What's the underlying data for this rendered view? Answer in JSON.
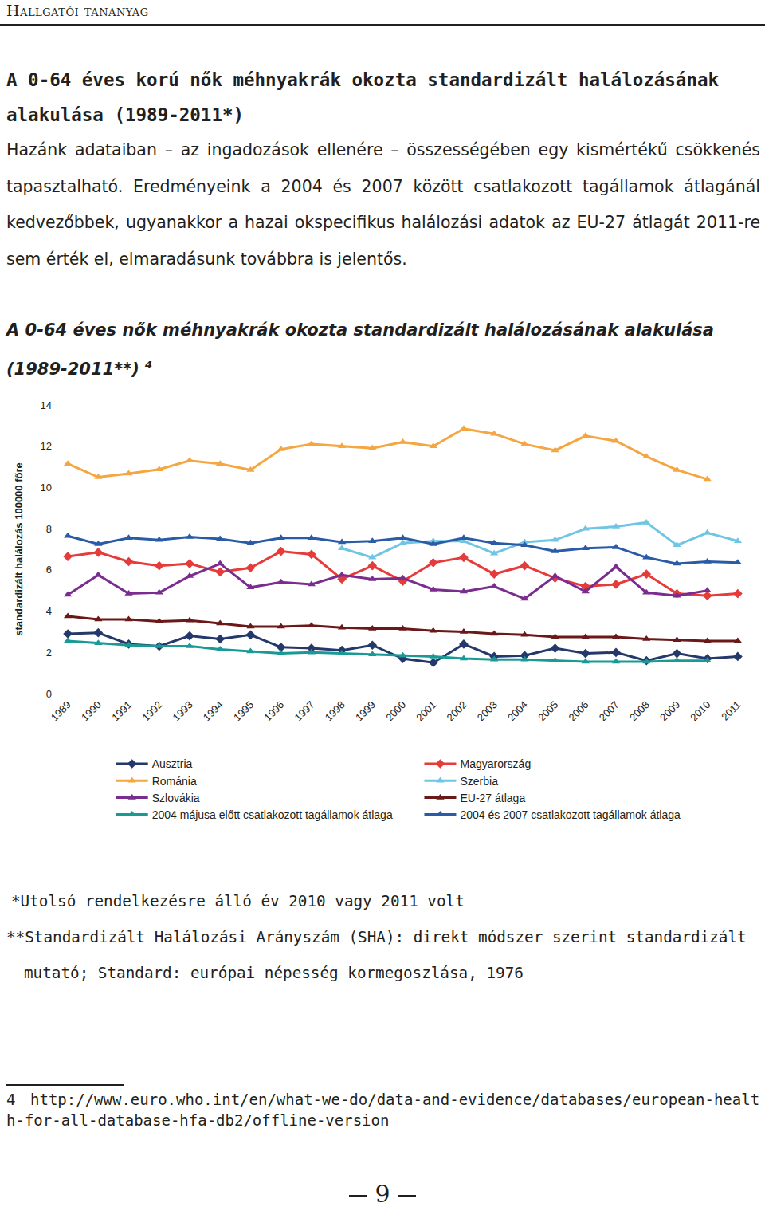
{
  "header": "Hallgatói tananyag",
  "heading": "A 0-64 éves korú nők méhnyakrák okozta standardizált halálozásának alakulása (1989-2011*)",
  "paragraph": "Hazánk adataiban – az ingadozások ellenére – összességében egy kismértékű csökkenés tapasztalható. Eredményeink a 2004 és 2007 között csatlakozott tagállamok átlagánál kedvezőbbek, ugyanakkor a hazai okspecifikus halálozási adatok az EU-27 átlagát 2011-re sem érték el, elmaradásunk továbbra is jelentős.",
  "chart_heading": {
    "text": "A 0-64 éves nők méhnyakrák okozta standardizált halálozásának alakulása (1989-2011**)",
    "ref": "4"
  },
  "chart_data": {
    "type": "line",
    "y_label": "standardizált halálozás 100000 főre",
    "x": [
      1989,
      1990,
      1991,
      1992,
      1993,
      1994,
      1995,
      1996,
      1997,
      1998,
      1999,
      2000,
      2001,
      2002,
      2003,
      2004,
      2005,
      2006,
      2007,
      2008,
      2009,
      2010,
      2011
    ],
    "xlim": [
      1988.5,
      2011.5
    ],
    "xticks": [
      1989,
      1990,
      1991,
      1992,
      1993,
      1994,
      1995,
      1996,
      1997,
      1998,
      1999,
      2000,
      2001,
      2002,
      2003,
      2004,
      2005,
      2006,
      2007,
      2008,
      2009,
      2010,
      2011
    ],
    "ylim": [
      0,
      14
    ],
    "yticks": [
      0,
      2,
      4,
      6,
      8,
      10,
      12,
      14
    ],
    "grid": false,
    "legend": "bottom",
    "series": [
      {
        "name": "Ausztria",
        "color": "#24386b",
        "marker": "diamond",
        "values": [
          2.9,
          2.95,
          2.4,
          2.3,
          2.8,
          2.65,
          2.85,
          2.25,
          2.2,
          2.1,
          2.35,
          1.7,
          1.5,
          2.4,
          1.8,
          1.85,
          2.2,
          1.95,
          2.0,
          1.6,
          1.95,
          1.7,
          1.8
        ]
      },
      {
        "name": "Magyarország",
        "color": "#e63b3b",
        "marker": "diamond",
        "values": [
          6.65,
          6.85,
          6.4,
          6.2,
          6.3,
          5.9,
          6.1,
          6.9,
          6.75,
          5.55,
          6.2,
          5.45,
          6.35,
          6.6,
          5.8,
          6.2,
          5.6,
          5.2,
          5.3,
          5.8,
          4.85,
          4.75,
          4.85
        ]
      },
      {
        "name": "Románia",
        "color": "#f5a640",
        "marker": "triangle",
        "values": [
          11.15,
          10.5,
          10.67,
          10.88,
          11.3,
          11.15,
          10.85,
          11.85,
          12.1,
          12.0,
          11.9,
          12.2,
          12.0,
          12.85,
          12.6,
          12.1,
          11.8,
          12.5,
          12.25,
          11.5,
          10.85,
          10.4,
          null
        ]
      },
      {
        "name": "Szerbia",
        "color": "#6ec6e4",
        "marker": "triangle",
        "values": [
          null,
          null,
          null,
          null,
          null,
          null,
          null,
          null,
          null,
          7.05,
          6.6,
          7.3,
          7.4,
          7.4,
          6.8,
          7.35,
          7.45,
          8.0,
          8.1,
          8.3,
          7.2,
          7.8,
          7.4
        ]
      },
      {
        "name": "Szlovákia",
        "color": "#7b2d8f",
        "marker": "triangle",
        "values": [
          4.8,
          5.75,
          4.85,
          4.9,
          5.7,
          6.3,
          5.15,
          5.4,
          5.3,
          5.75,
          5.55,
          5.6,
          5.05,
          4.95,
          5.2,
          4.6,
          5.7,
          4.95,
          6.15,
          4.9,
          4.75,
          5.0,
          null
        ]
      },
      {
        "name": "EU-27 átlaga",
        "color": "#6b1818",
        "marker": "triangle",
        "values": [
          3.75,
          3.6,
          3.6,
          3.5,
          3.55,
          3.4,
          3.25,
          3.25,
          3.3,
          3.2,
          3.15,
          3.15,
          3.05,
          3.0,
          2.9,
          2.85,
          2.75,
          2.75,
          2.75,
          2.65,
          2.6,
          2.55,
          2.55
        ]
      },
      {
        "name": "2004 májusa előtt csatlakozott tagállamok átlaga",
        "color": "#1a9a95",
        "marker": "triangle",
        "values": [
          2.55,
          2.45,
          2.35,
          2.3,
          2.3,
          2.15,
          2.05,
          1.95,
          2.0,
          1.95,
          1.9,
          1.85,
          1.8,
          1.7,
          1.65,
          1.65,
          1.6,
          1.55,
          1.55,
          1.55,
          1.6,
          1.6,
          null
        ]
      },
      {
        "name": "2004 és 2007 csatlakozott tagállamok átlaga",
        "color": "#2a5ba6",
        "marker": "triangle",
        "values": [
          7.65,
          7.25,
          7.55,
          7.45,
          7.6,
          7.5,
          7.3,
          7.55,
          7.55,
          7.35,
          7.4,
          7.55,
          7.25,
          7.55,
          7.3,
          7.2,
          6.9,
          7.05,
          7.1,
          6.6,
          6.3,
          6.4,
          6.35
        ]
      }
    ]
  },
  "notes": [
    "*Utolsó rendelkezésre álló év 2010 vagy 2011 volt",
    "**Standardizált Halálozási Arányszám (SHA): direkt módszer szerint standardizált mutató; Standard: európai népesség kormegoszlása, 1976"
  ],
  "footnote": {
    "number": "4",
    "text": "http://www.euro.who.int/en/what-we-do/data-and-evidence/databases/european-health-for-all-database-hfa-db2/offline-version"
  },
  "page_number": "9"
}
